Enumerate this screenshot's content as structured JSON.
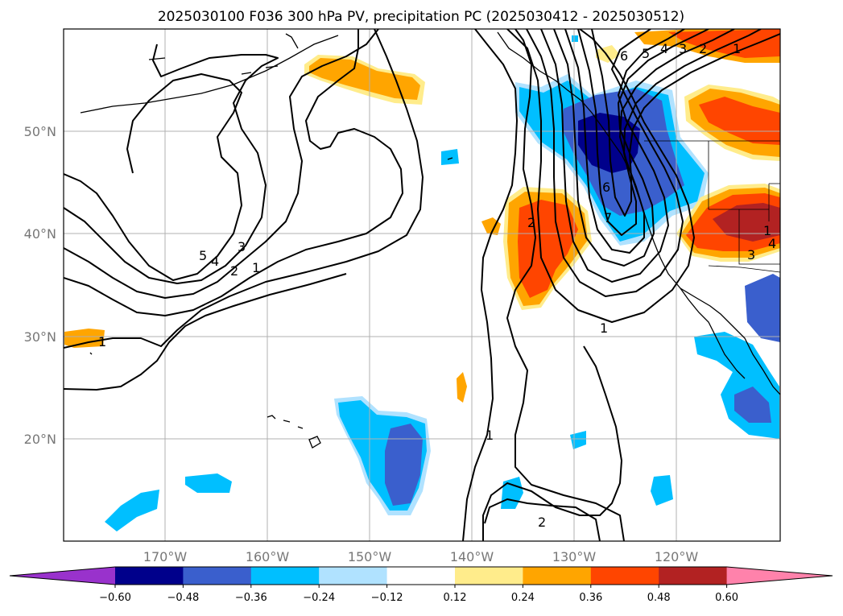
{
  "title": "2025030100 F036 300 hPa PV, precipitation PC (2025030412 - 2025030512)",
  "lon_labels": [
    "170°W",
    "160°W",
    "150°W",
    "140°W",
    "130°W",
    "120°W"
  ],
  "lat_labels": [
    "50°N",
    "40°N",
    "30°N",
    "20°N"
  ],
  "colorbar": {
    "ticks": [
      "−0.60",
      "−0.48",
      "−0.36",
      "−0.24",
      "−0.12",
      "0.12",
      "0.24",
      "0.36",
      "0.48",
      "0.60"
    ],
    "colors": [
      "#9932cc",
      "#00008b",
      "#3a5fcd",
      "#00bfff",
      "#b0e2ff",
      "#ffffff",
      "#ffec8b",
      "#ffa500",
      "#ff4500",
      "#b22222",
      "#ff82ab"
    ]
  },
  "contour_labels": [
    "5",
    "4",
    "3",
    "2",
    "1",
    "1",
    "1",
    "2",
    "6",
    "5",
    "4",
    "3",
    "2",
    "1",
    "2",
    "1",
    "6",
    "7",
    "3",
    "4",
    "1"
  ]
}
